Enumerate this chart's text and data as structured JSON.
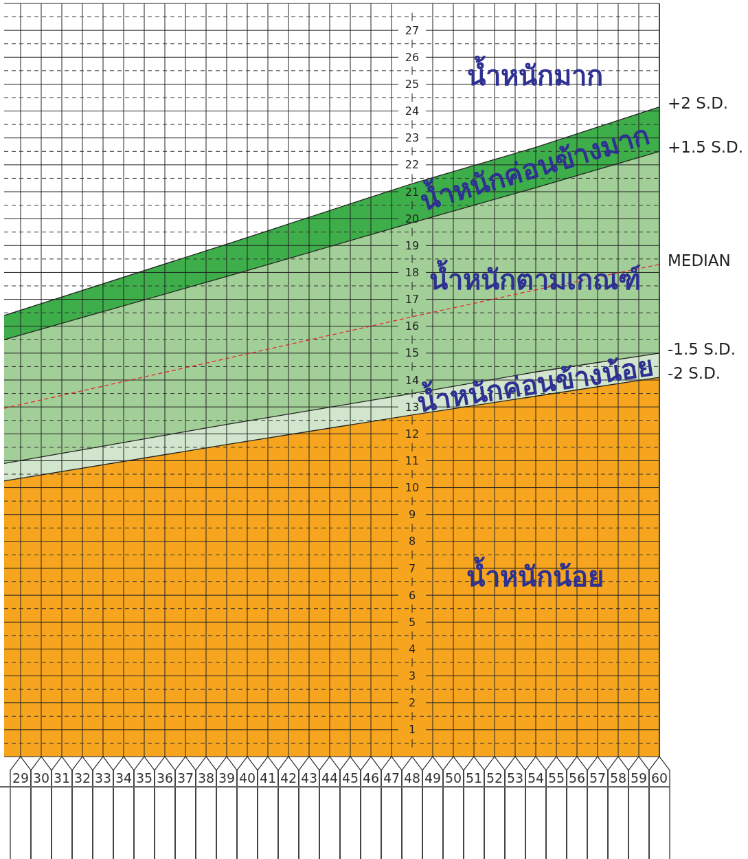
{
  "chart_data": {
    "type": "area",
    "x": [
      28.2,
      39,
      48,
      54,
      60
    ],
    "xlim": [
      28.2,
      60
    ],
    "xticks": [
      29,
      30,
      31,
      32,
      33,
      34,
      35,
      36,
      37,
      38,
      39,
      40,
      41,
      42,
      43,
      44,
      45,
      46,
      47,
      48,
      49,
      50,
      51,
      52,
      53,
      54,
      55,
      56,
      57,
      58,
      59,
      60
    ],
    "ylim": [
      0,
      28
    ],
    "yticks": [
      1,
      2,
      3,
      4,
      5,
      6,
      7,
      8,
      9,
      10,
      11,
      12,
      13,
      14,
      15,
      16,
      17,
      18,
      19,
      20,
      21,
      22,
      23,
      24,
      25,
      26,
      27
    ],
    "grid": true,
    "legend": false,
    "marker": "none",
    "series": [
      {
        "name": "+2 S.D.",
        "color": "#3dae4a",
        "values": [
          16.4,
          19.05,
          21.3,
          22.65,
          24.15
        ]
      },
      {
        "name": "+1.5 S.D.",
        "color": "#a2cf98",
        "values": [
          15.5,
          17.85,
          19.85,
          21.15,
          22.5
        ]
      },
      {
        "name": "-1.5 S.D.",
        "color": "#d1e6cc",
        "values": [
          10.9,
          12.35,
          13.5,
          14.3,
          15.0
        ]
      },
      {
        "name": "-2 S.D.",
        "color": "#f7a51e",
        "values": [
          10.25,
          11.6,
          12.7,
          13.4,
          14.1
        ]
      },
      {
        "name": "MEDIAN",
        "type": "line",
        "color": "#e8262a",
        "line_style": "dashed",
        "values": [
          12.95,
          14.8,
          16.35,
          17.35,
          18.3
        ]
      }
    ],
    "annotations": [
      "น้ำหนักมาก",
      "น้ำหนักค่อนข้างมาก",
      "น้ำหนักตามเกณฑ์",
      "น้ำหนักค่อนข้างน้อย",
      "น้ำหนักน้อย"
    ]
  }
}
